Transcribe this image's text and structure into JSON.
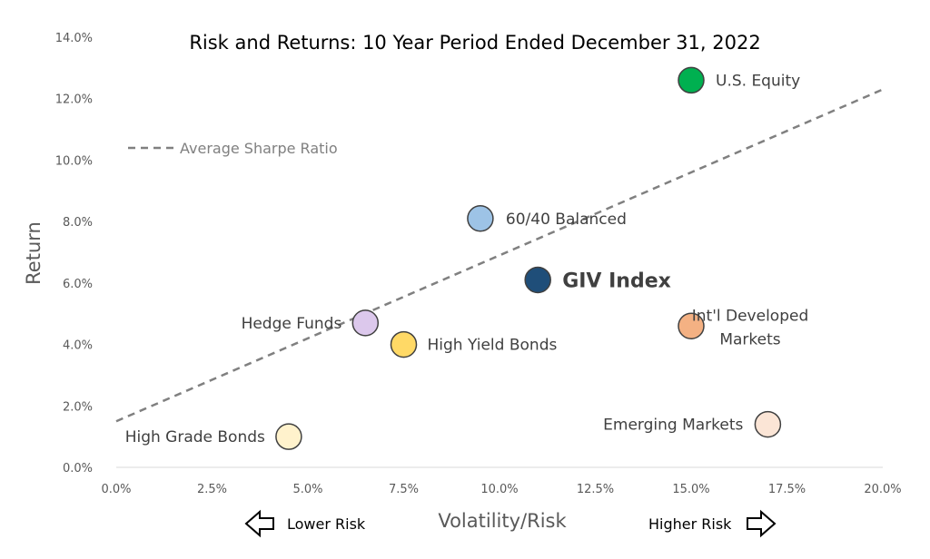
{
  "chart_data": {
    "type": "scatter",
    "title": "Risk and Returns: 10 Year Period Ended December 31, 2022",
    "xlabel": "Volatility/Risk",
    "ylabel": "Return",
    "xlim": [
      0,
      20
    ],
    "ylim": [
      0,
      14
    ],
    "x_ticks": [
      "0.0%",
      "2.5%",
      "5.0%",
      "7.5%",
      "10.0%",
      "12.5%",
      "15.0%",
      "17.5%",
      "20.0%"
    ],
    "y_ticks": [
      "0.0%",
      "2.0%",
      "4.0%",
      "6.0%",
      "8.0%",
      "10.0%",
      "12.0%",
      "14.0%"
    ],
    "grid": false,
    "points": [
      {
        "name": "U.S. Equity",
        "x": 15.0,
        "y": 12.6,
        "color": "#00b050"
      },
      {
        "name": "60/40 Balanced",
        "x": 9.5,
        "y": 8.1,
        "color": "#9dc3e6"
      },
      {
        "name": "GIV Index",
        "x": 11.0,
        "y": 6.1,
        "color": "#1f4e79"
      },
      {
        "name": "Int'l Developed Markets",
        "x": 15.0,
        "y": 4.6,
        "color": "#f4b183"
      },
      {
        "name": "Hedge Funds",
        "x": 6.5,
        "y": 4.7,
        "color": "#dcc8ec"
      },
      {
        "name": "High Yield Bonds",
        "x": 7.5,
        "y": 4.0,
        "color": "#ffd966"
      },
      {
        "name": "High Grade Bonds",
        "x": 4.5,
        "y": 1.0,
        "color": "#fff2cc"
      },
      {
        "name": "Emerging Markets",
        "x": 17.0,
        "y": 1.4,
        "color": "#fbe5d6"
      }
    ],
    "sharpe_line": {
      "name": "Average Sharpe Ratio",
      "x": [
        0,
        20
      ],
      "y": [
        1.5,
        12.3
      ],
      "color": "#808080"
    },
    "legend": "top-left",
    "annotations": {
      "lower": "Lower Risk",
      "higher": "Higher Risk"
    }
  }
}
